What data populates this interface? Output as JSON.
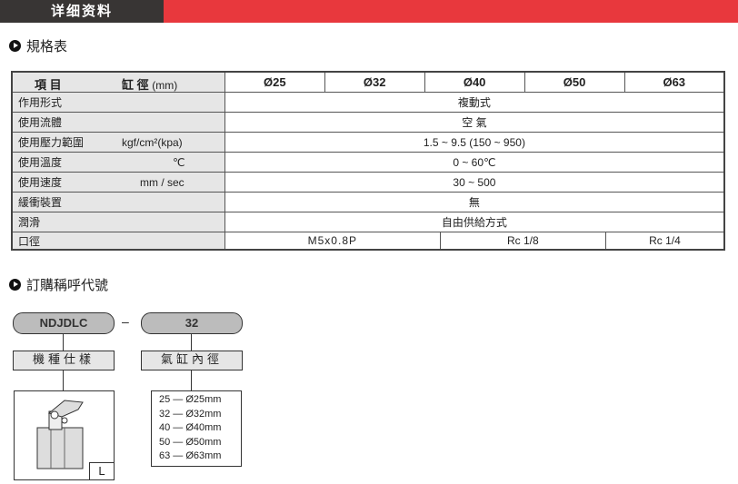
{
  "header": {
    "title": "详细资料"
  },
  "spec_section": {
    "title": "規格表"
  },
  "table": {
    "item_label": "項 目",
    "bore_label": "缸 徑",
    "bore_unit": "(mm)",
    "sizes": [
      "Ø25",
      "Ø32",
      "Ø40",
      "Ø50",
      "Ø63"
    ],
    "rows": [
      {
        "label": "作用形式",
        "unit": "",
        "value": "複動式"
      },
      {
        "label": "使用流體",
        "unit": "",
        "value": "空 氣"
      },
      {
        "label": "使用壓力範圍",
        "unit": "kgf/cm²(kpa)",
        "value": "1.5 ~ 9.5 (150 ~ 950)"
      },
      {
        "label": "使用溫度",
        "unit": "℃",
        "value": "0 ~ 60℃"
      },
      {
        "label": "使用速度",
        "unit": "mm / sec",
        "value": "30 ~ 500"
      },
      {
        "label": "緩衝裝置",
        "unit": "",
        "value": "無"
      },
      {
        "label": "潤滑",
        "unit": "",
        "value": "自由供給方式"
      }
    ],
    "port": {
      "label": "口徑",
      "values": [
        "M5x0.8P",
        "Rc  1/8",
        "Rc 1/4"
      ]
    }
  },
  "order_section": {
    "title": "訂購稱呼代號",
    "model": "NDJDLC",
    "dash": "–",
    "bore": "32",
    "model_label": "機種仕樣",
    "bore_label": "氣缸內徑",
    "type_label": "L",
    "bore_options": [
      "25 — Ø25mm",
      "32 — Ø32mm",
      "40 — Ø40mm",
      "50 — Ø50mm",
      "63 — Ø63mm"
    ]
  }
}
